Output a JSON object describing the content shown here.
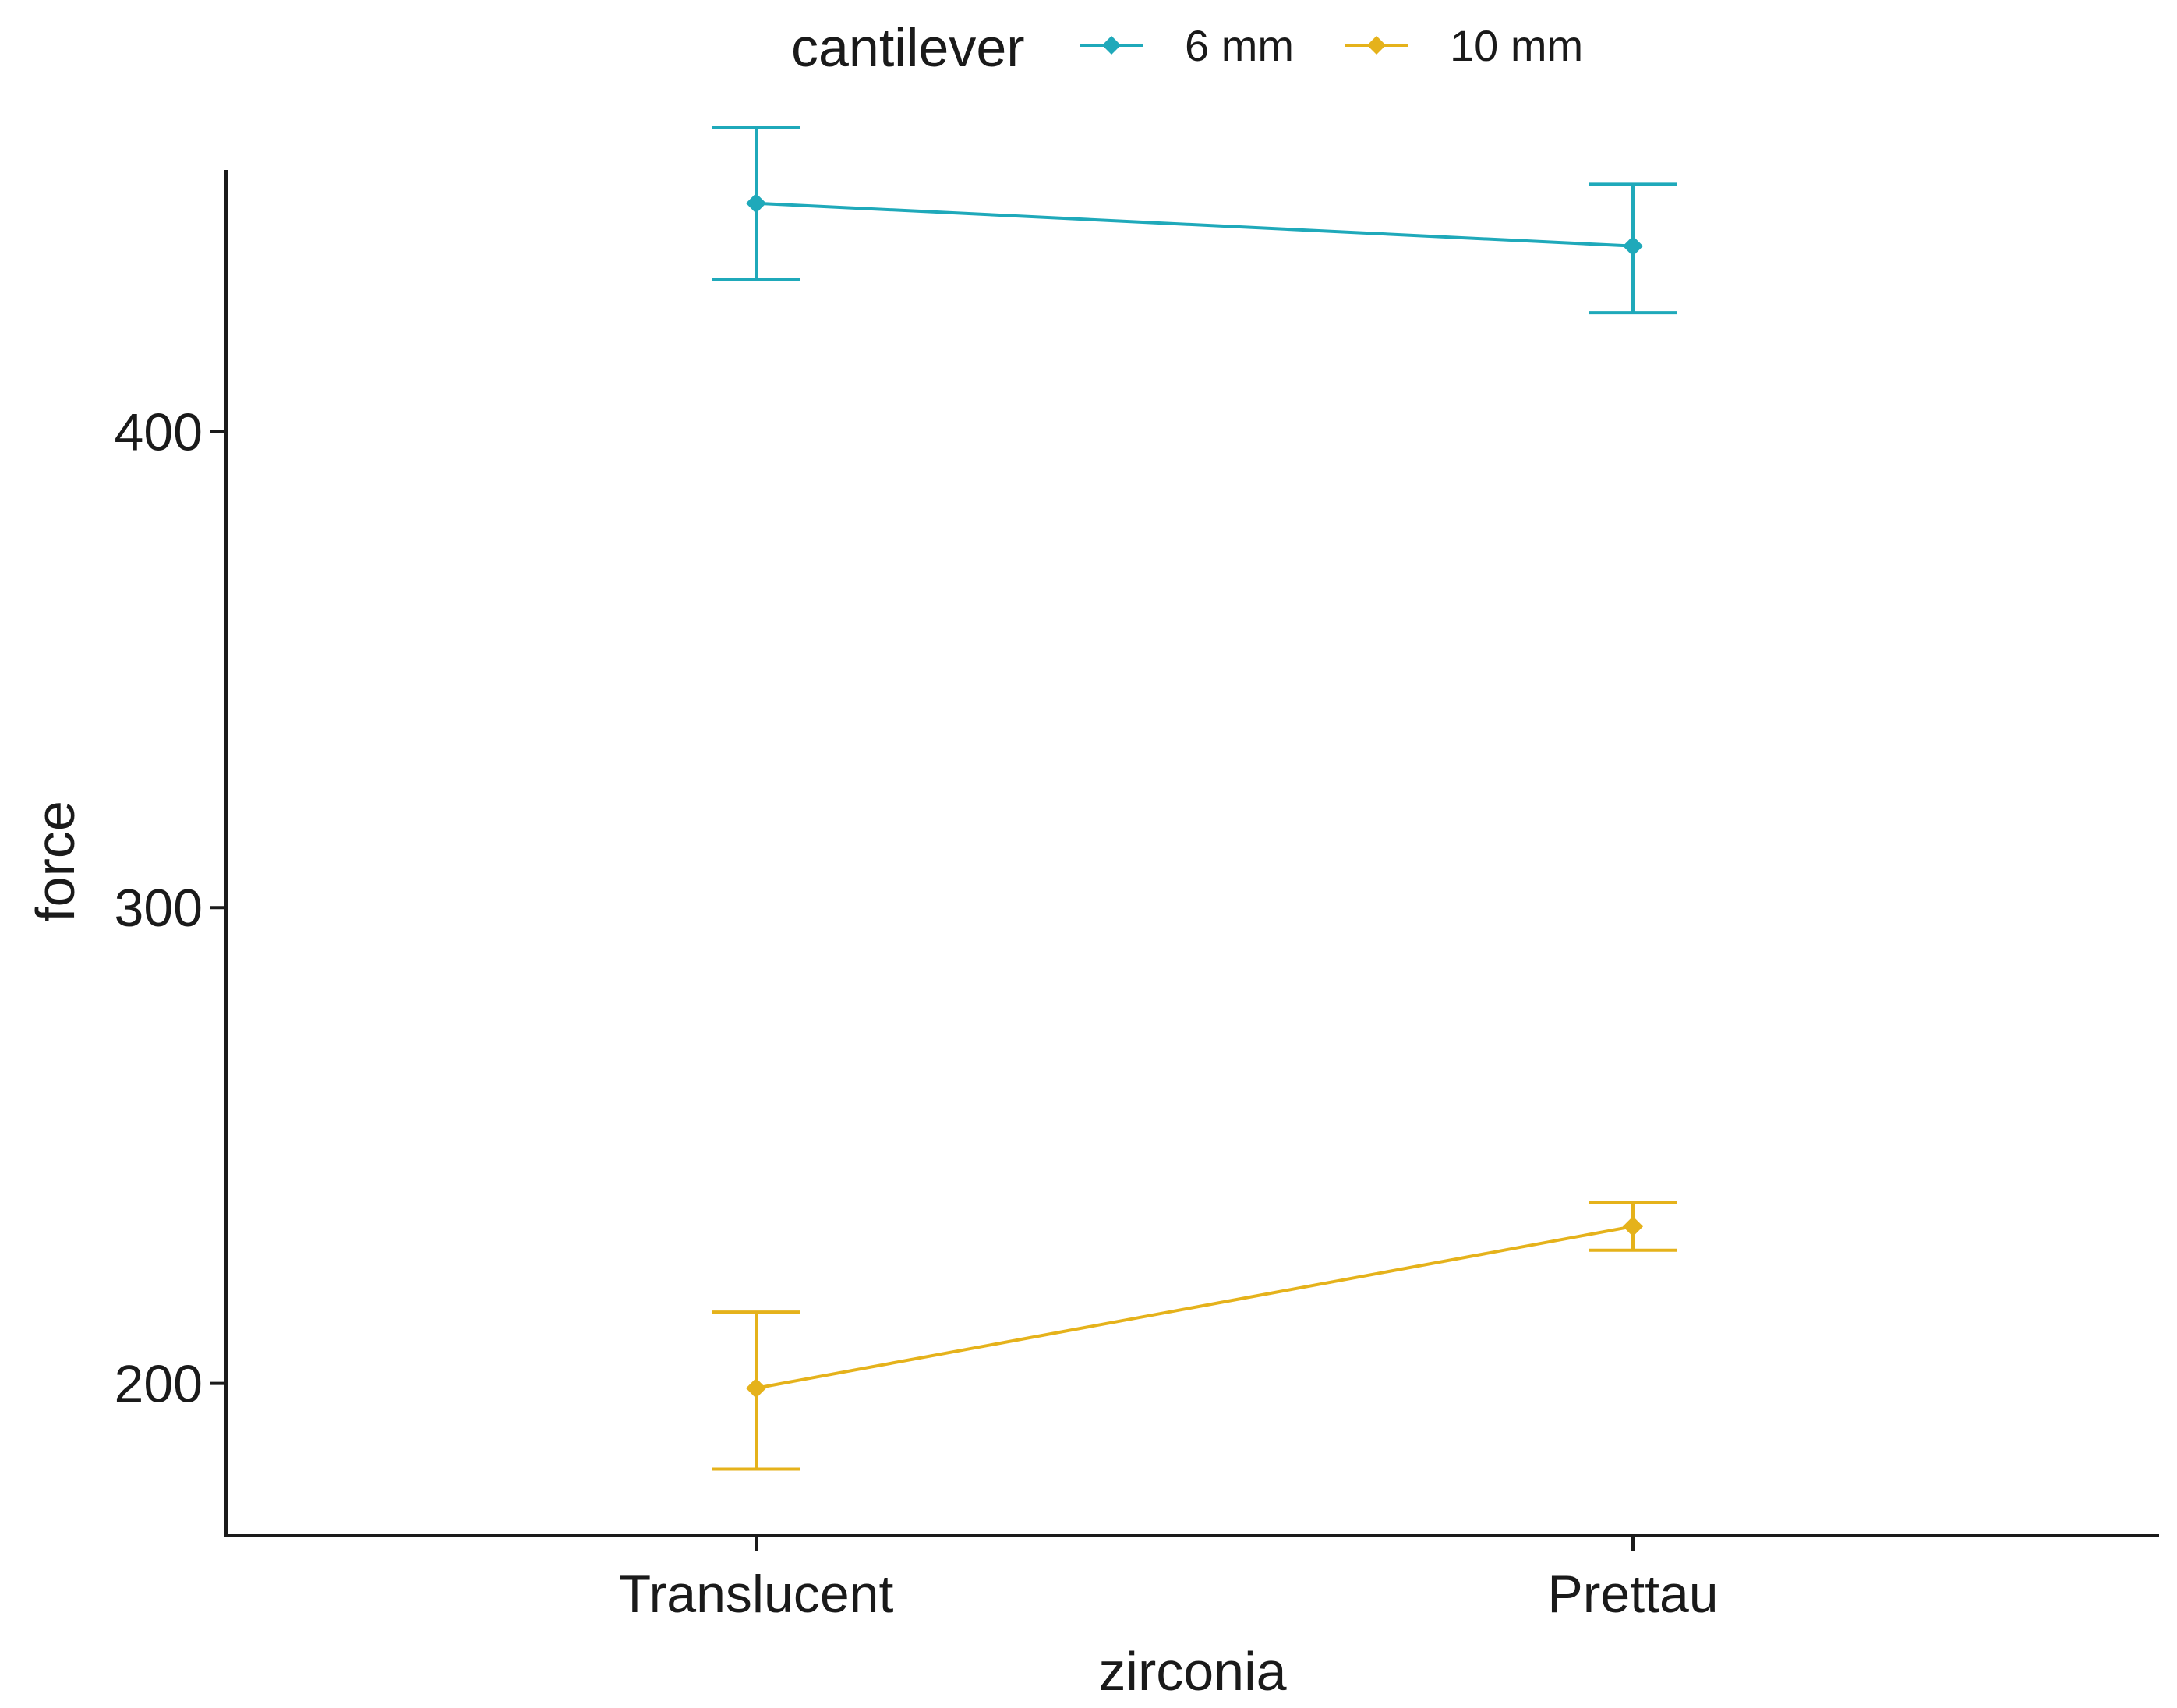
{
  "chart_data": {
    "type": "line",
    "title": "",
    "xlabel": "zirconia",
    "ylabel": "force",
    "categories": [
      "Translucent",
      "Prettau"
    ],
    "ylim": [
      168,
      455
    ],
    "yticks": [
      200,
      300,
      400
    ],
    "grid": false,
    "legend": {
      "title": "cantilever",
      "position": "top"
    },
    "series": [
      {
        "name": "6 mm",
        "color": "#1FA9BA",
        "values": [
          448,
          439
        ],
        "lower": [
          432,
          425
        ],
        "upper": [
          464,
          452
        ]
      },
      {
        "name": "10 mm",
        "color": "#E5B21B",
        "values": [
          199,
          233
        ],
        "lower": [
          182,
          228
        ],
        "upper": [
          215,
          238
        ]
      }
    ]
  }
}
